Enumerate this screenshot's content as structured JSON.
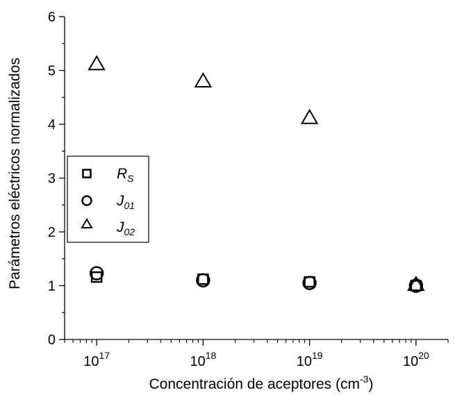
{
  "chart_data": {
    "type": "scatter",
    "xlabel_main": "Concentración de aceptores (cm",
    "xlabel_sup": "-3",
    "xlabel_close": ")",
    "ylabel": "Parámetros eléctricos normalizados",
    "xscale": "log",
    "xlim": [
      5e+16,
      2e+20
    ],
    "ylim": [
      0,
      6
    ],
    "grid": false,
    "legend_position": "left-middle",
    "x_ticks": [
      {
        "value": 1e+17,
        "base": "10",
        "exp": "17"
      },
      {
        "value": 1e+18,
        "base": "10",
        "exp": "18"
      },
      {
        "value": 1e+19,
        "base": "10",
        "exp": "19"
      },
      {
        "value": 1e+20,
        "base": "10",
        "exp": "20"
      }
    ],
    "y_ticks": [
      {
        "value": 0,
        "label": "0"
      },
      {
        "value": 1,
        "label": "1"
      },
      {
        "value": 2,
        "label": "2"
      },
      {
        "value": 3,
        "label": "3"
      },
      {
        "value": 4,
        "label": "4"
      },
      {
        "value": 5,
        "label": "5"
      },
      {
        "value": 6,
        "label": "6"
      }
    ],
    "series": [
      {
        "name_main": "R",
        "name_sub": "S",
        "marker": "square",
        "x": [
          1e+17,
          1e+18,
          1e+19,
          1e+20
        ],
        "y": [
          1.16,
          1.12,
          1.07,
          1.0
        ]
      },
      {
        "name_main": "J",
        "name_sub": "01",
        "marker": "circle",
        "x": [
          1e+17,
          1e+18,
          1e+19,
          1e+20
        ],
        "y": [
          1.23,
          1.1,
          1.05,
          1.0
        ]
      },
      {
        "name_main": "J",
        "name_sub": "02",
        "marker": "triangle",
        "x": [
          1e+17,
          1e+18,
          1e+19,
          1e+20
        ],
        "y": [
          5.12,
          4.8,
          4.12,
          1.02
        ]
      }
    ]
  }
}
